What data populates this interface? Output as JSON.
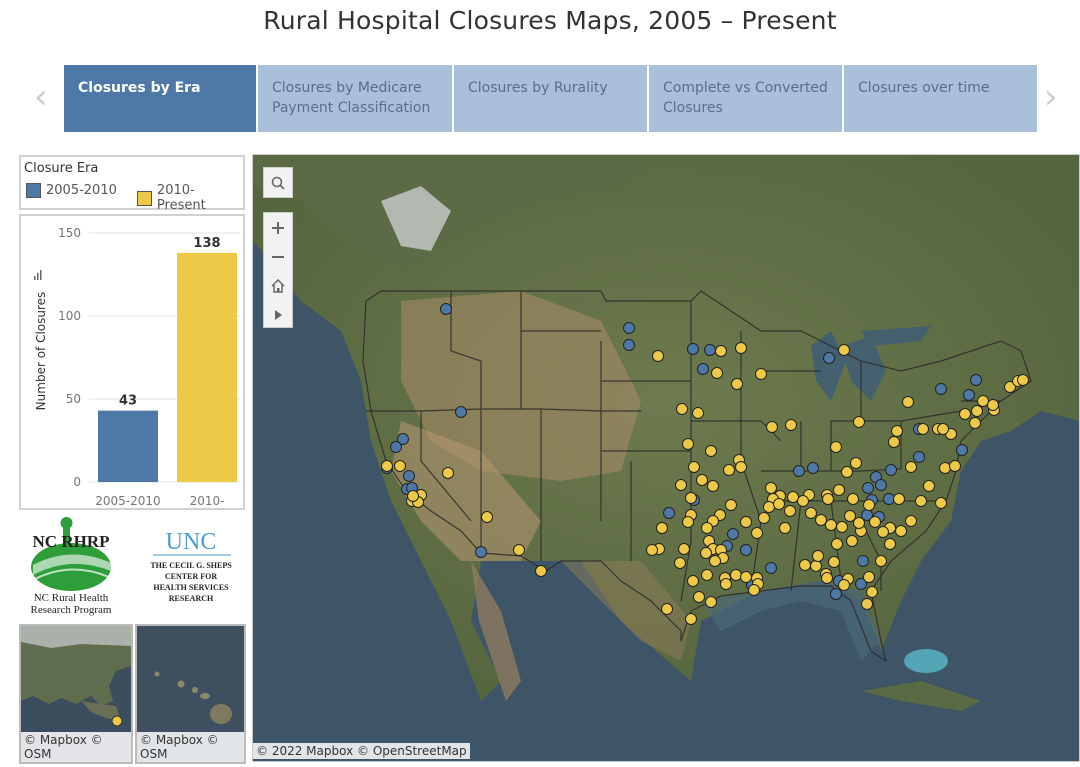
{
  "title": "Rural Hospital Closures Maps, 2005 – Present",
  "nav": {
    "prev_glyph": "‹",
    "next_glyph": "›"
  },
  "tabs": [
    {
      "label_lines": [
        "Closures by Era"
      ],
      "active": true
    },
    {
      "label_lines": [
        "Closures by Medicare",
        "Payment Classification"
      ],
      "active": false
    },
    {
      "label_lines": [
        "Closures by Rurality"
      ],
      "active": false
    },
    {
      "label_lines": [
        "Complete vs Converted",
        "Closures"
      ],
      "active": false
    },
    {
      "label_lines": [
        "Closures over time"
      ],
      "active": false
    }
  ],
  "legend": {
    "title": "Closure Era",
    "items": [
      {
        "label": "2005-2010",
        "color": "#4e79a7"
      },
      {
        "label": "2010-Present",
        "color": "#edc948"
      }
    ]
  },
  "chart_data": {
    "type": "bar",
    "categories": [
      "2005-2010",
      "2010-"
    ],
    "values": [
      43,
      138
    ],
    "colors": [
      "#4e79a7",
      "#edc948"
    ],
    "ylabel": "Number of Closures",
    "yticks": [
      0,
      50,
      100,
      150
    ],
    "ylim": [
      0,
      160
    ],
    "grid": true
  },
  "logos": {
    "ncrhrp_text": "NC RHRP",
    "ncrhrp_sub": [
      "NC Rural Health",
      "Research Program"
    ],
    "unc_text": "UNC",
    "sheps_lines": [
      "THE CECIL G. SHEPS",
      "CENTER FOR",
      "HEALTH SERVICES",
      "RESEARCH"
    ]
  },
  "insets": [
    {
      "name": "alaska",
      "attribution_lines": [
        "© Mapbox ©",
        "OSM"
      ]
    },
    {
      "name": "hawaii",
      "attribution_lines": [
        "© Mapbox ©",
        "OSM"
      ]
    }
  ],
  "map": {
    "attribution": "© 2022 Mapbox © OpenStreetMap",
    "controls": [
      "search-icon",
      "zoom-in-icon",
      "zoom-out-icon",
      "home-icon",
      "play-icon"
    ],
    "points_2005_2010": [
      [
        445,
        308
      ],
      [
        628,
        327
      ],
      [
        628,
        344
      ],
      [
        692,
        348
      ],
      [
        709,
        349
      ],
      [
        702,
        368
      ],
      [
        828,
        357
      ],
      [
        940,
        388
      ],
      [
        968,
        394
      ],
      [
        975,
        379
      ],
      [
        460,
        411
      ],
      [
        402,
        438
      ],
      [
        395,
        446
      ],
      [
        386,
        467
      ],
      [
        408,
        475
      ],
      [
        406,
        488
      ],
      [
        411,
        487
      ],
      [
        480,
        551
      ],
      [
        798,
        470
      ],
      [
        812,
        467
      ],
      [
        875,
        476
      ],
      [
        890,
        469
      ],
      [
        867,
        487
      ],
      [
        880,
        484
      ],
      [
        871,
        499
      ],
      [
        866,
        514
      ],
      [
        888,
        498
      ],
      [
        878,
        516
      ],
      [
        918,
        428
      ],
      [
        961,
        449
      ],
      [
        918,
        456
      ],
      [
        732,
        533
      ],
      [
        745,
        549
      ],
      [
        770,
        567
      ],
      [
        838,
        580
      ],
      [
        862,
        560
      ],
      [
        860,
        583
      ],
      [
        835,
        593
      ],
      [
        751,
        584
      ],
      [
        668,
        512
      ],
      [
        693,
        499
      ],
      [
        726,
        545
      ]
    ],
    "points_2010_present": [
      [
        657,
        355
      ],
      [
        720,
        350
      ],
      [
        740,
        347
      ],
      [
        716,
        372
      ],
      [
        736,
        383
      ],
      [
        760,
        373
      ],
      [
        843,
        349
      ],
      [
        907,
        401
      ],
      [
        982,
        400
      ],
      [
        1009,
        386
      ],
      [
        1017,
        380
      ],
      [
        1022,
        379
      ],
      [
        993,
        409
      ],
      [
        964,
        413
      ],
      [
        950,
        433
      ],
      [
        937,
        428
      ],
      [
        942,
        428
      ],
      [
        922,
        428
      ],
      [
        896,
        430
      ],
      [
        893,
        441
      ],
      [
        974,
        422
      ],
      [
        976,
        410
      ],
      [
        992,
        404
      ],
      [
        681,
        408
      ],
      [
        697,
        412
      ],
      [
        687,
        443
      ],
      [
        693,
        466
      ],
      [
        701,
        479
      ],
      [
        680,
        484
      ],
      [
        712,
        485
      ],
      [
        710,
        450
      ],
      [
        738,
        459
      ],
      [
        728,
        469
      ],
      [
        740,
        466
      ],
      [
        771,
        426
      ],
      [
        790,
        424
      ],
      [
        835,
        446
      ],
      [
        858,
        421
      ],
      [
        855,
        462
      ],
      [
        846,
        471
      ],
      [
        910,
        466
      ],
      [
        944,
        467
      ],
      [
        954,
        465
      ],
      [
        928,
        485
      ],
      [
        940,
        502
      ],
      [
        920,
        500
      ],
      [
        898,
        498
      ],
      [
        910,
        520
      ],
      [
        900,
        530
      ],
      [
        889,
        527
      ],
      [
        860,
        530
      ],
      [
        841,
        526
      ],
      [
        826,
        494
      ],
      [
        827,
        498
      ],
      [
        808,
        494
      ],
      [
        802,
        500
      ],
      [
        792,
        496
      ],
      [
        779,
        495
      ],
      [
        772,
        498
      ],
      [
        770,
        487
      ],
      [
        768,
        506
      ],
      [
        763,
        517
      ],
      [
        756,
        532
      ],
      [
        778,
        503
      ],
      [
        789,
        510
      ],
      [
        784,
        527
      ],
      [
        810,
        512
      ],
      [
        820,
        519
      ],
      [
        830,
        524
      ],
      [
        849,
        515
      ],
      [
        858,
        522
      ],
      [
        851,
        540
      ],
      [
        836,
        543
      ],
      [
        833,
        561
      ],
      [
        815,
        565
      ],
      [
        804,
        564
      ],
      [
        825,
        573
      ],
      [
        826,
        577
      ],
      [
        847,
        578
      ],
      [
        868,
        576
      ],
      [
        871,
        591
      ],
      [
        866,
        603
      ],
      [
        880,
        560
      ],
      [
        889,
        543
      ],
      [
        882,
        531
      ],
      [
        874,
        521
      ],
      [
        868,
        504
      ],
      [
        852,
        498
      ],
      [
        838,
        489
      ],
      [
        745,
        521
      ],
      [
        730,
        504
      ],
      [
        719,
        514
      ],
      [
        712,
        520
      ],
      [
        706,
        527
      ],
      [
        708,
        540
      ],
      [
        712,
        548
      ],
      [
        705,
        552
      ],
      [
        720,
        549
      ],
      [
        722,
        557
      ],
      [
        714,
        560
      ],
      [
        706,
        574
      ],
      [
        724,
        577
      ],
      [
        735,
        574
      ],
      [
        756,
        577
      ],
      [
        757,
        583
      ],
      [
        745,
        576
      ],
      [
        690,
        497
      ],
      [
        690,
        514
      ],
      [
        687,
        521
      ],
      [
        661,
        527
      ],
      [
        658,
        548
      ],
      [
        683,
        548
      ],
      [
        679,
        562
      ],
      [
        692,
        580
      ],
      [
        710,
        601
      ],
      [
        698,
        596
      ],
      [
        690,
        618
      ],
      [
        666,
        608
      ],
      [
        651,
        549
      ],
      [
        486,
        516
      ],
      [
        518,
        549
      ],
      [
        540,
        570
      ],
      [
        447,
        472
      ],
      [
        420,
        494
      ],
      [
        411,
        500
      ],
      [
        417,
        501
      ],
      [
        399,
        465
      ],
      [
        386,
        465
      ],
      [
        412,
        495
      ],
      [
        725,
        583
      ],
      [
        753,
        589
      ],
      [
        817,
        555
      ],
      [
        843,
        584
      ]
    ]
  }
}
